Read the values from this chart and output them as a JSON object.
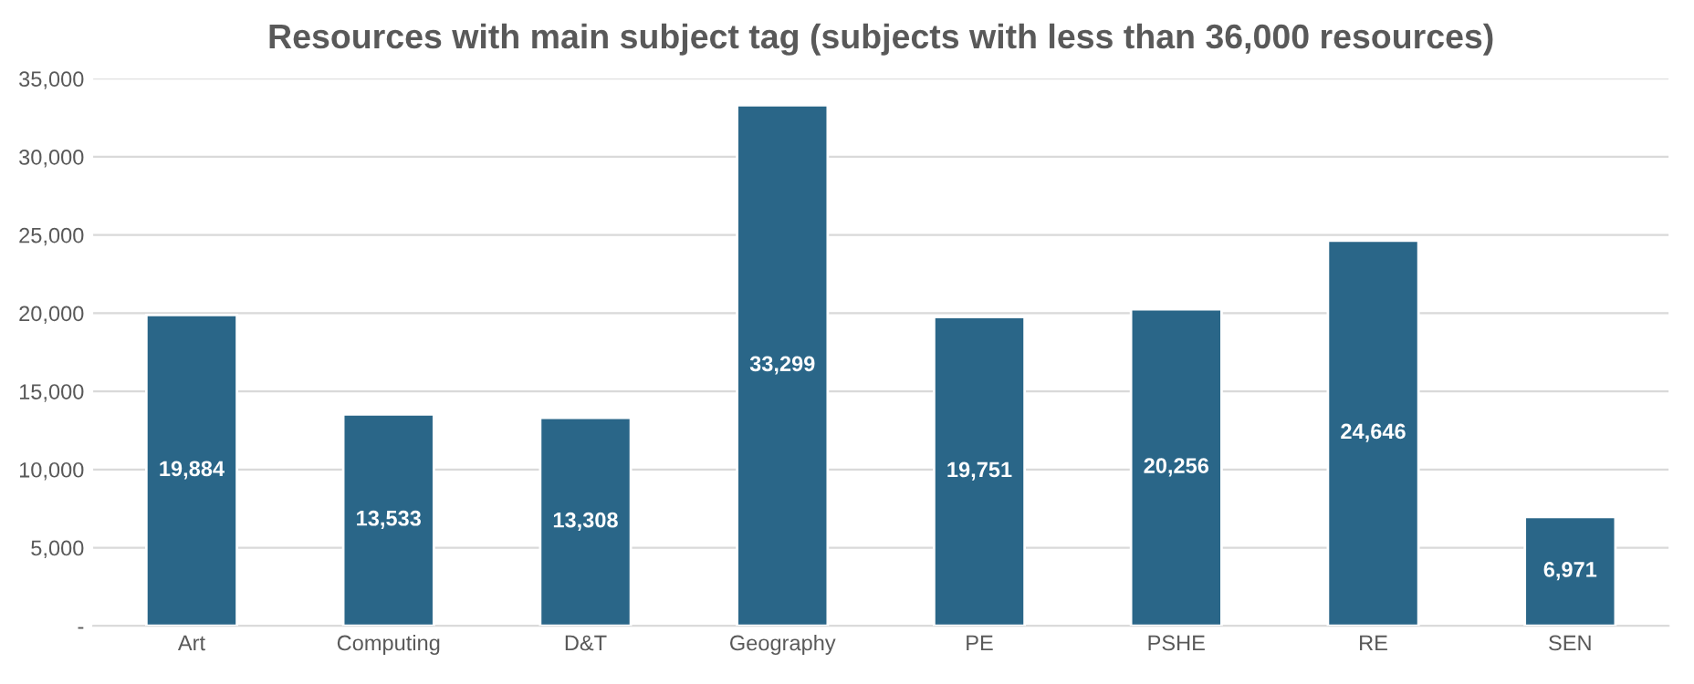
{
  "chart_data": {
    "type": "bar",
    "title": "Resources with main subject tag (subjects with less than 36,000 resources)",
    "categories": [
      "Art",
      "Computing",
      "D&T",
      "Geography",
      "PE",
      "PSHE",
      "RE",
      "SEN"
    ],
    "values": [
      19884,
      13533,
      13308,
      33299,
      19751,
      20256,
      24646,
      6971
    ],
    "color": "#2a6688",
    "ylim": [
      0,
      35000
    ],
    "yticks": [
      {
        "value": 0,
        "label": "-"
      },
      {
        "value": 5000,
        "label": "5,000"
      },
      {
        "value": 10000,
        "label": "10,000"
      },
      {
        "value": 15000,
        "label": "15,000"
      },
      {
        "value": 20000,
        "label": "20,000"
      },
      {
        "value": 25000,
        "label": "25,000"
      },
      {
        "value": 30000,
        "label": "30,000"
      },
      {
        "value": 35000,
        "label": "35,000"
      }
    ],
    "grid": "y",
    "value_labels": [
      "19,884",
      "13,533",
      "13,308",
      "33,299",
      "19,751",
      "20,256",
      "24,646",
      "6,971"
    ]
  }
}
